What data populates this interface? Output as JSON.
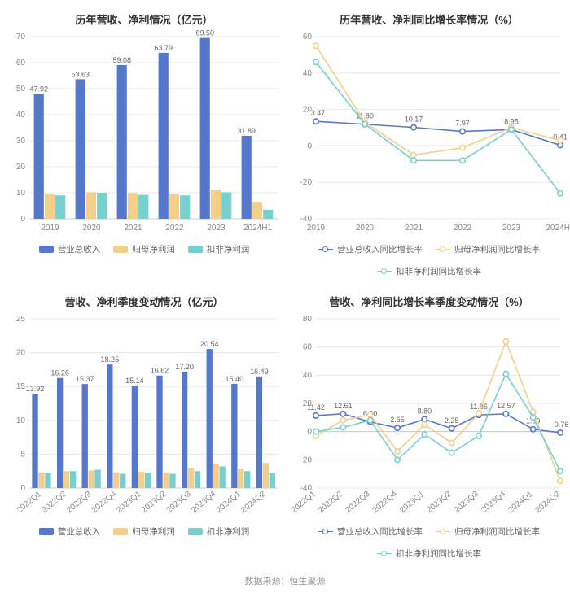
{
  "footer": "数据来源：恒生聚源",
  "colors": {
    "series1": "#5577cc",
    "series2": "#f3cf89",
    "series3": "#77d0ce",
    "grid": "#e8e8e8",
    "axis": "#cccccc",
    "tick_text": "#888888",
    "label_text": "#666666",
    "title": "#333333",
    "bg": "#ffffff"
  },
  "chart_tl": {
    "type": "bar",
    "title": "历年营收、净利情况（亿元）",
    "categories": [
      "2019",
      "2020",
      "2021",
      "2022",
      "2023",
      "2024H1"
    ],
    "ylim": [
      0,
      70
    ],
    "ytick_step": 10,
    "series": [
      {
        "name": "营业总收入",
        "color": "#5577cc",
        "values": [
          47.92,
          53.63,
          59.08,
          63.79,
          69.5,
          31.89
        ],
        "show_labels": true
      },
      {
        "name": "归母净利润",
        "color": "#f3cf89",
        "values": [
          9.5,
          10.2,
          9.8,
          9.5,
          11.2,
          6.5
        ],
        "show_labels": false
      },
      {
        "name": "扣非净利润",
        "color": "#77d0ce",
        "values": [
          9.0,
          10.0,
          9.2,
          9.0,
          10.2,
          3.5
        ],
        "show_labels": false
      }
    ],
    "legend": [
      "营业总收入",
      "归母净利润",
      "扣非净利润"
    ]
  },
  "chart_tr": {
    "type": "line",
    "title": "历年营收、净利同比增长率情况（%）",
    "categories": [
      "2019",
      "2020",
      "2021",
      "2022",
      "2023",
      "2024H1"
    ],
    "ylim": [
      -40,
      60
    ],
    "ytick_step": 20,
    "series": [
      {
        "name": "营业总收入同比增长率",
        "color": "#5577cc",
        "values": [
          13.47,
          11.9,
          10.17,
          7.97,
          8.95,
          0.41
        ],
        "show_labels": true
      },
      {
        "name": "归母净利润同比增长率",
        "color": "#f3cf89",
        "values": [
          55,
          13,
          -5,
          -1,
          10,
          3
        ],
        "show_labels": false
      },
      {
        "name": "扣非净利润同比增长率",
        "color": "#77d0ce",
        "values": [
          46,
          12,
          -8,
          -8,
          9,
          -26
        ],
        "show_labels": false
      }
    ],
    "legend": [
      "营业总收入同比增长率",
      "归母净利润同比增长率",
      "扣非净利润同比增长率"
    ]
  },
  "chart_bl": {
    "type": "bar",
    "title": "营收、净利季度变动情况（亿元）",
    "categories": [
      "2022Q1",
      "2022Q2",
      "2022Q3",
      "2022Q4",
      "2023Q1",
      "2023Q2",
      "2023Q3",
      "2023Q4",
      "2024Q1",
      "2024Q2"
    ],
    "ylim": [
      0,
      25
    ],
    "ytick_step": 5,
    "rotate_x": true,
    "series": [
      {
        "name": "营业总收入",
        "color": "#5577cc",
        "values": [
          13.92,
          16.26,
          15.37,
          18.25,
          15.14,
          16.62,
          17.2,
          20.54,
          15.4,
          16.49
        ],
        "show_labels": true
      },
      {
        "name": "归母净利润",
        "color": "#f3cf89",
        "values": [
          2.3,
          2.5,
          2.6,
          2.3,
          2.4,
          2.3,
          2.9,
          3.6,
          2.8,
          3.7
        ],
        "show_labels": false
      },
      {
        "name": "扣非净利润",
        "color": "#77d0ce",
        "values": [
          2.2,
          2.5,
          2.7,
          2.1,
          2.2,
          2.1,
          2.5,
          3.2,
          2.5,
          2.2
        ],
        "show_labels": false
      }
    ],
    "legend": [
      "营业总收入",
      "归母净利润",
      "扣非净利润"
    ]
  },
  "chart_br": {
    "type": "line",
    "title": "营收、净利同比增长率季度变动情况（%）",
    "categories": [
      "2022Q1",
      "2022Q2",
      "2022Q3",
      "2022Q4",
      "2023Q1",
      "2023Q2",
      "2023Q3",
      "2023Q4",
      "2024Q1",
      "2024Q2"
    ],
    "ylim": [
      -40,
      80
    ],
    "ytick_step": 20,
    "rotate_x": true,
    "series": [
      {
        "name": "营业总收入同比增长率",
        "color": "#5577cc",
        "values": [
          11.42,
          12.61,
          6.9,
          2.65,
          8.8,
          2.25,
          11.86,
          12.57,
          1.69,
          -0.76
        ],
        "show_labels": true
      },
      {
        "name": "归母净利润同比增长率",
        "color": "#f3cf89",
        "values": [
          -3,
          8,
          12,
          -14,
          5,
          -8,
          13,
          64,
          14,
          -35
        ],
        "show_labels": false
      },
      {
        "name": "扣非净利润同比增长率",
        "color": "#77d0ce",
        "values": [
          0,
          3,
          8,
          -20,
          -2,
          -15,
          -3,
          41,
          10,
          -28
        ],
        "show_labels": false
      }
    ],
    "legend": [
      "营业总收入同比增长率",
      "归母净利润同比增长率",
      "扣非净利润同比增长率"
    ]
  }
}
